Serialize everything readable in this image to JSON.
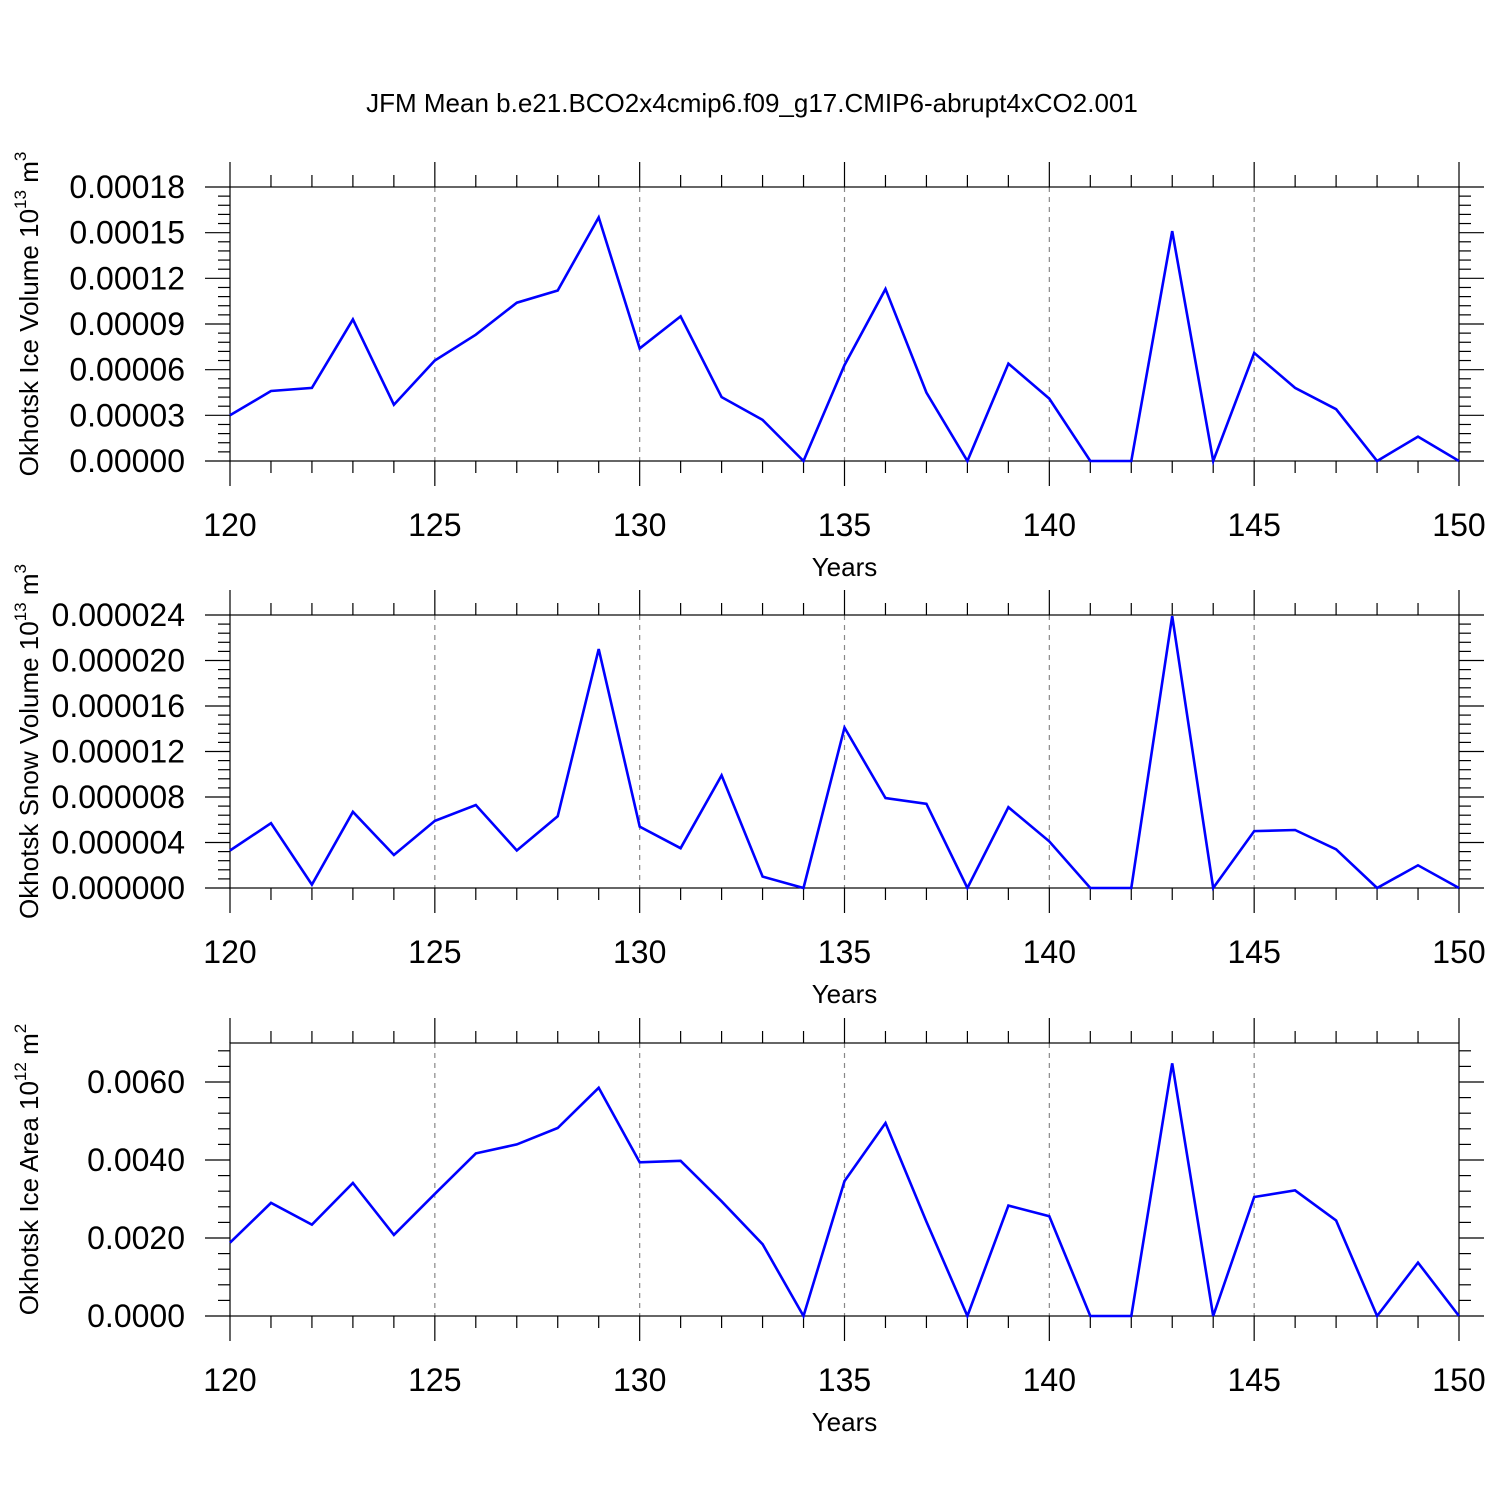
{
  "title": "JFM Mean b.e21.BCO2x4cmip6.f09_g17.CMIP6-abrupt4xCO2.001",
  "line_color": "#0000ff",
  "chart_data": [
    {
      "type": "line",
      "ylabel": "Okhotsk Ice Volume 10",
      "ylabel_exp": "13",
      "ylabel_unit": " m",
      "ylabel_unit_exp": "3",
      "xlabel": "Years",
      "xlim": [
        120,
        150
      ],
      "ylim": [
        0,
        0.00018
      ],
      "yticks": [
        "0.00000",
        "0.00003",
        "0.00006",
        "0.00009",
        "0.00012",
        "0.00015",
        "0.00018"
      ],
      "ytick_values": [
        0,
        3e-05,
        6e-05,
        9e-05,
        0.00012,
        0.00015,
        0.00018
      ],
      "xticks": [
        "120",
        "125",
        "130",
        "135",
        "140",
        "145",
        "150"
      ],
      "grid_x": [
        125,
        130,
        135,
        140,
        145
      ],
      "x": [
        120,
        121,
        122,
        123,
        124,
        125,
        126,
        127,
        128,
        129,
        130,
        131,
        132,
        133,
        134,
        135,
        136,
        137,
        138,
        139,
        140,
        141,
        142,
        143,
        144,
        145,
        146,
        147,
        148,
        149,
        150
      ],
      "series": [
        {
          "values": [
            3e-05,
            4.6e-05,
            4.8e-05,
            9.3e-05,
            3.7e-05,
            6.6e-05,
            8.3e-05,
            0.000104,
            0.000112,
            0.00016,
            7.4e-05,
            9.5e-05,
            4.2e-05,
            2.7e-05,
            0.0,
            6.3e-05,
            0.000113,
            4.5e-05,
            0.0,
            6.4e-05,
            4.1e-05,
            0.0,
            0.0,
            0.000151,
            0.0,
            7.1e-05,
            4.8e-05,
            3.4e-05,
            0.0,
            1.6e-05,
            0.0
          ]
        }
      ]
    },
    {
      "type": "line",
      "ylabel": "Okhotsk Snow Volume 10",
      "ylabel_exp": "13",
      "ylabel_unit": " m",
      "ylabel_unit_exp": "3",
      "xlabel": "Years",
      "xlim": [
        120,
        150
      ],
      "ylim": [
        0,
        2.4e-05
      ],
      "yticks": [
        "0.000000",
        "0.000004",
        "0.000008",
        "0.000012",
        "0.000016",
        "0.000020",
        "0.000024"
      ],
      "ytick_values": [
        0,
        4e-06,
        8e-06,
        1.2e-05,
        1.6e-05,
        2e-05,
        2.4e-05
      ],
      "xticks": [
        "120",
        "125",
        "130",
        "135",
        "140",
        "145",
        "150"
      ],
      "grid_x": [
        125,
        130,
        135,
        140,
        145
      ],
      "x": [
        120,
        121,
        122,
        123,
        124,
        125,
        126,
        127,
        128,
        129,
        130,
        131,
        132,
        133,
        134,
        135,
        136,
        137,
        138,
        139,
        140,
        141,
        142,
        143,
        144,
        145,
        146,
        147,
        148,
        149,
        150
      ],
      "series": [
        {
          "values": [
            3.3e-06,
            5.7e-06,
            3e-07,
            6.7e-06,
            2.9e-06,
            5.9e-06,
            7.3e-06,
            3.3e-06,
            6.3e-06,
            2.1e-05,
            5.4e-06,
            3.5e-06,
            9.9e-06,
            1e-06,
            0.0,
            1.41e-05,
            7.9e-06,
            7.4e-06,
            0.0,
            7.1e-06,
            4.1e-06,
            0.0,
            0.0,
            2.39e-05,
            0.0,
            5e-06,
            5.1e-06,
            3.4e-06,
            0.0,
            2e-06,
            0.0
          ]
        }
      ]
    },
    {
      "type": "line",
      "ylabel": "Okhotsk Ice Area 10",
      "ylabel_exp": "12",
      "ylabel_unit": " m",
      "ylabel_unit_exp": "2",
      "xlabel": "Years",
      "xlim": [
        120,
        150
      ],
      "ylim": [
        0,
        0.007
      ],
      "yticks": [
        "0.0000",
        "0.0020",
        "0.0040",
        "0.0060"
      ],
      "ytick_values": [
        0,
        0.002,
        0.004,
        0.006
      ],
      "xticks": [
        "120",
        "125",
        "130",
        "135",
        "140",
        "145",
        "150"
      ],
      "grid_x": [
        125,
        130,
        135,
        140,
        145
      ],
      "x": [
        120,
        121,
        122,
        123,
        124,
        125,
        126,
        127,
        128,
        129,
        130,
        131,
        132,
        133,
        134,
        135,
        136,
        137,
        138,
        139,
        140,
        141,
        142,
        143,
        144,
        145,
        146,
        147,
        148,
        149,
        150
      ],
      "series": [
        {
          "values": [
            0.00188,
            0.0029,
            0.00234,
            0.00341,
            0.00208,
            0.00313,
            0.00417,
            0.0044,
            0.00482,
            0.00585,
            0.00394,
            0.00398,
            0.00294,
            0.00184,
            0.0,
            0.00346,
            0.00495,
            0.00242,
            0.0,
            0.00283,
            0.00256,
            0.0,
            0.0,
            0.00648,
            0.0,
            0.00305,
            0.00322,
            0.00245,
            0.0,
            0.00137,
            0.0
          ]
        }
      ]
    }
  ]
}
